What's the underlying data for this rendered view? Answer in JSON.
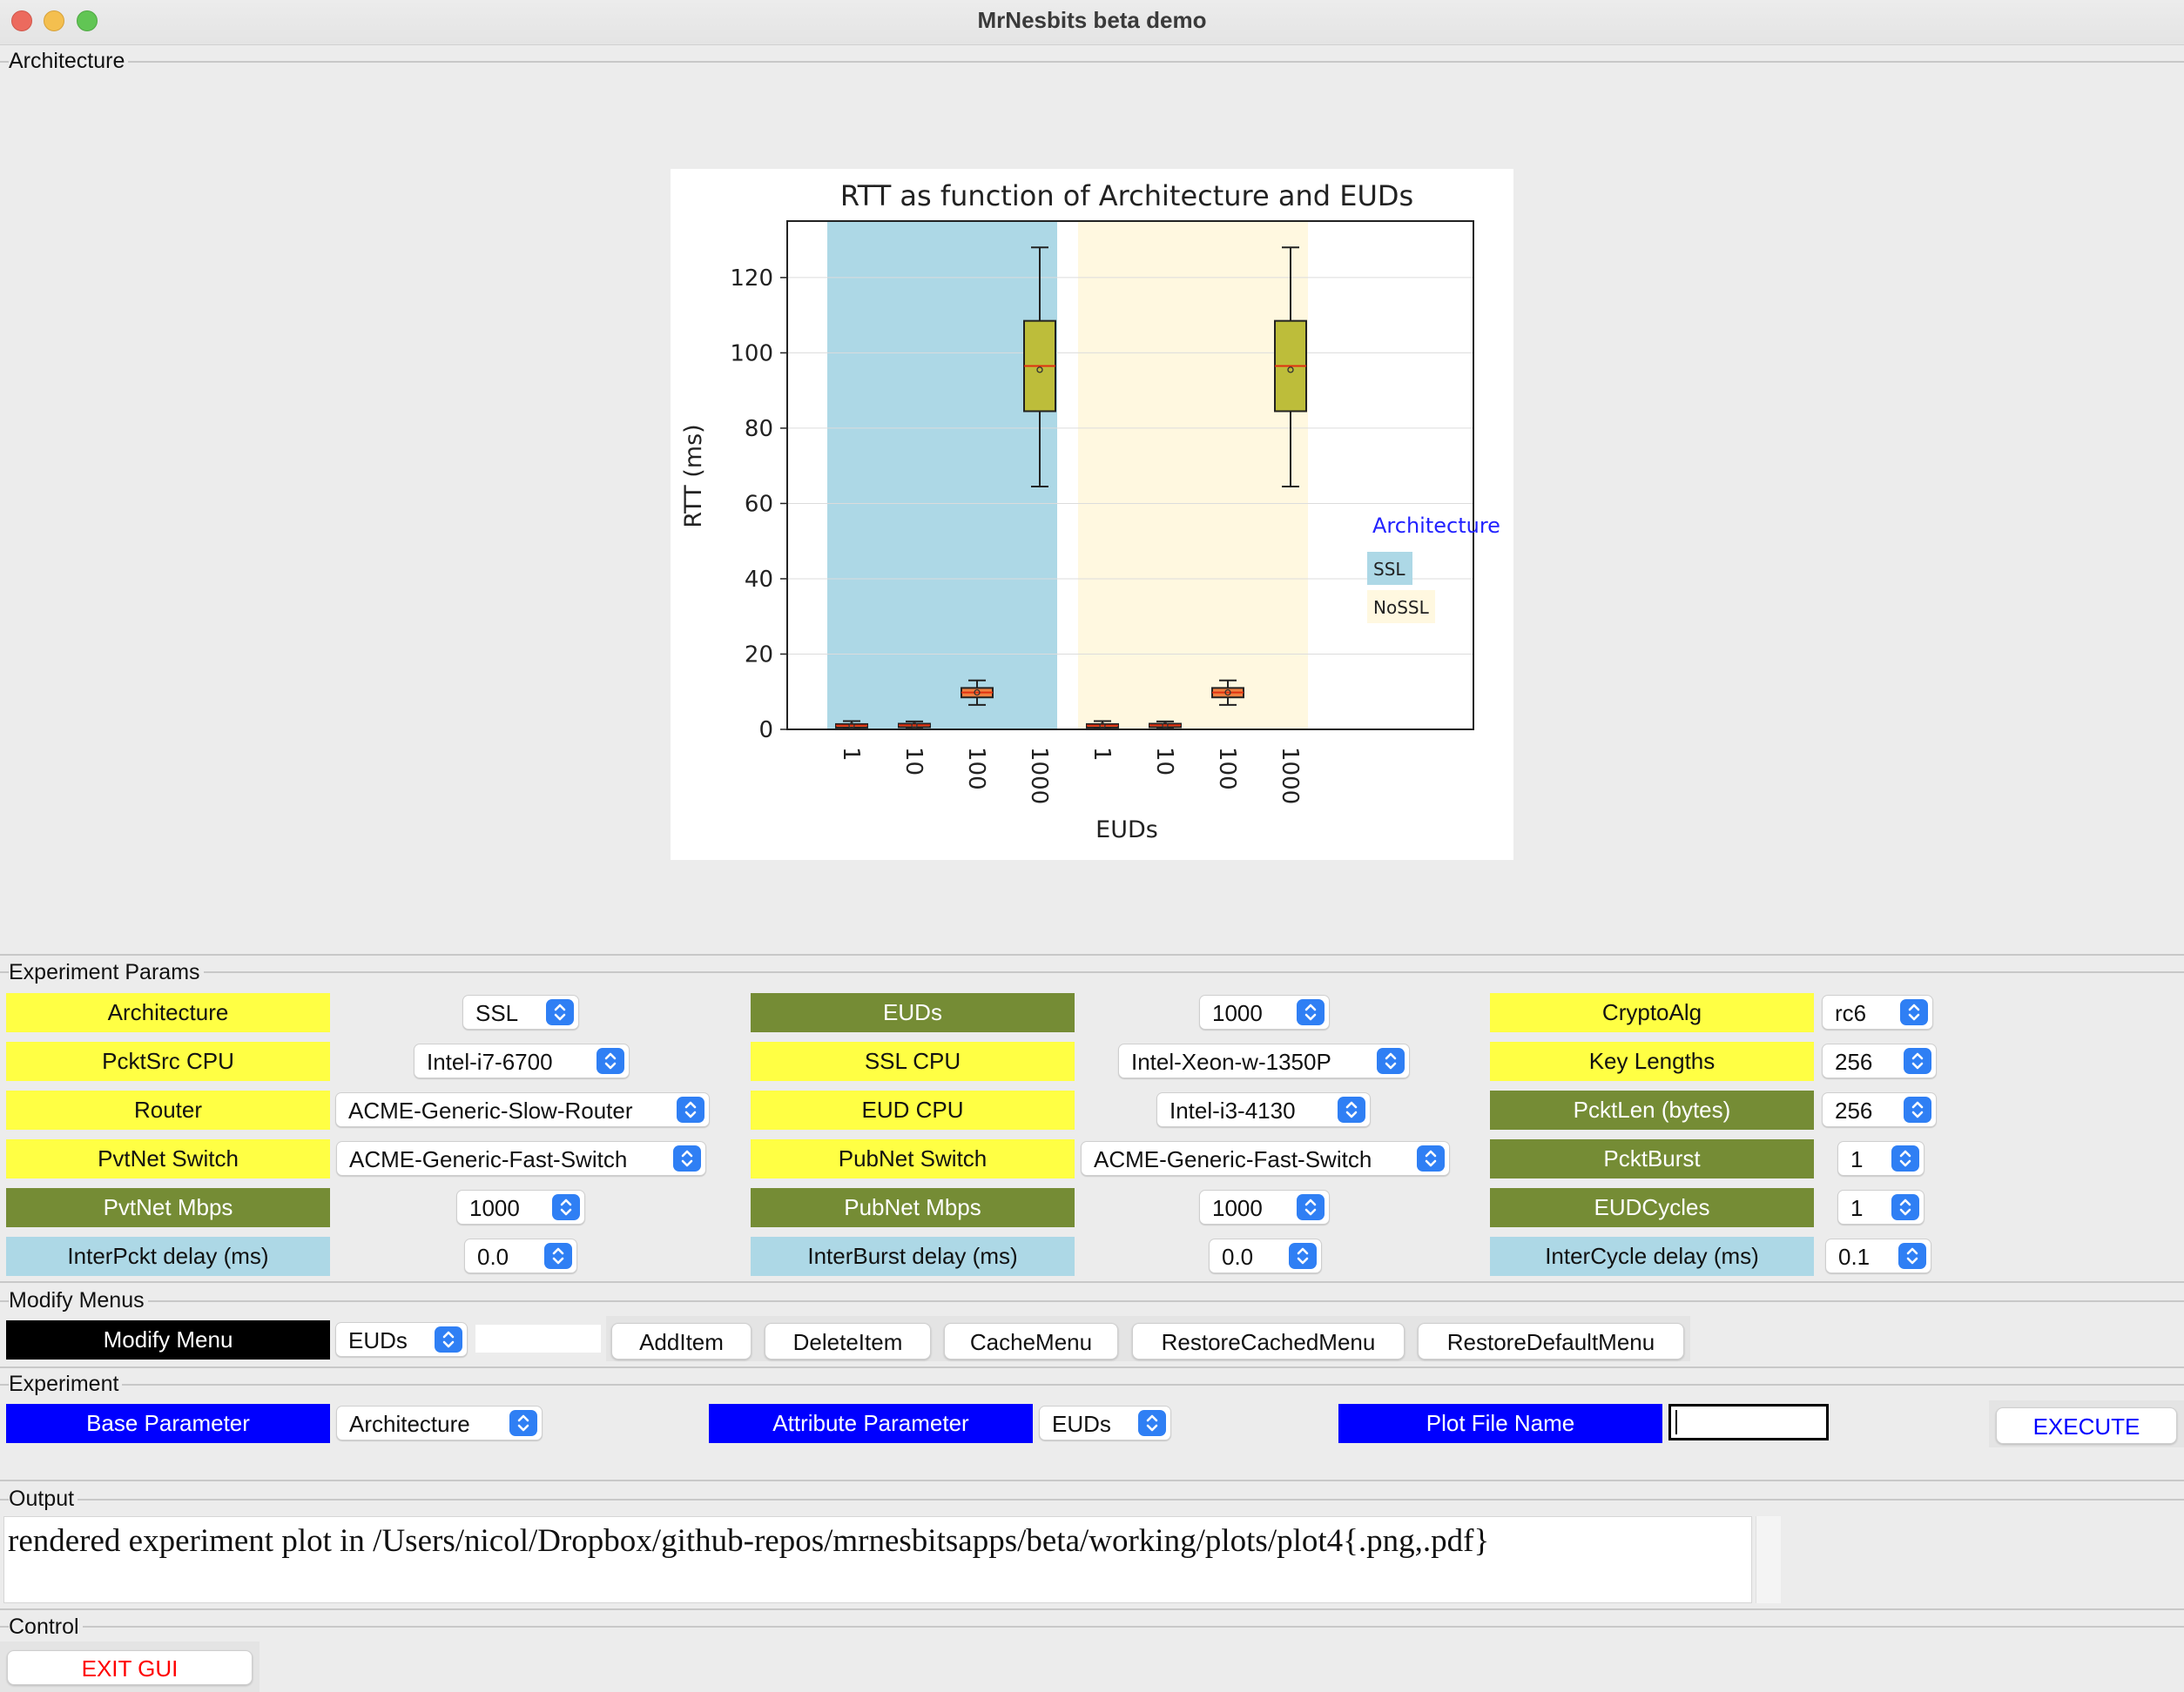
{
  "window": {
    "title": "MrNesbits beta demo"
  },
  "sections": {
    "architecture": "Architecture",
    "experiment_params": "Experiment Params",
    "modify_menus": "Modify Menus",
    "experiment": "Experiment",
    "output": "Output",
    "control": "Control"
  },
  "chart_data": {
    "type": "box",
    "title": "RTT as function of Architecture and EUDs",
    "xlabel": "EUDs",
    "ylabel": "RTT (ms)",
    "ylim": [
      0,
      135
    ],
    "yticks": [
      0,
      20,
      40,
      60,
      80,
      100,
      120
    ],
    "grid": true,
    "legend": {
      "title": "Architecture",
      "placement": "right",
      "entries": [
        "SSL",
        "NoSSL"
      ]
    },
    "groups": [
      {
        "name": "SSL",
        "color": "#add8e6",
        "categories": [
          "1",
          "10",
          "100",
          "1000"
        ],
        "boxes": [
          {
            "whislo": 0.2,
            "q1": 0.6,
            "med": 1.0,
            "q3": 1.4,
            "whishi": 2.2,
            "mean": 1.0
          },
          {
            "whislo": 0.3,
            "q1": 0.7,
            "med": 1.1,
            "q3": 1.5,
            "whishi": 2.1,
            "mean": 1.1
          },
          {
            "whislo": 6.5,
            "q1": 8.5,
            "med": 9.8,
            "q3": 11.0,
            "whishi": 13.0,
            "mean": 9.8
          },
          {
            "whislo": 64.5,
            "q1": 84.5,
            "med": 96.5,
            "q3": 108.5,
            "whishi": 128.0,
            "mean": 95.5
          }
        ]
      },
      {
        "name": "NoSSL",
        "color": "#fff8e0",
        "categories": [
          "1",
          "10",
          "100",
          "1000"
        ],
        "boxes": [
          {
            "whislo": 0.2,
            "q1": 0.6,
            "med": 1.0,
            "q3": 1.4,
            "whishi": 2.2,
            "mean": 1.0
          },
          {
            "whislo": 0.3,
            "q1": 0.7,
            "med": 1.1,
            "q3": 1.5,
            "whishi": 2.1,
            "mean": 1.1
          },
          {
            "whislo": 6.5,
            "q1": 8.5,
            "med": 9.8,
            "q3": 11.0,
            "whishi": 13.0,
            "mean": 9.8
          },
          {
            "whislo": 64.5,
            "q1": 84.5,
            "med": 96.5,
            "q3": 108.5,
            "whishi": 128.0,
            "mean": 95.5
          }
        ]
      }
    ],
    "box_colors": {
      "small": "#f08040",
      "large": "#bdbd3a",
      "median": "#e03010"
    }
  },
  "params": {
    "architecture": {
      "label": "Architecture",
      "value": "SSL"
    },
    "pcktsrc_cpu": {
      "label": "PcktSrc CPU",
      "value": "Intel-i7-6700"
    },
    "router": {
      "label": "Router",
      "value": "ACME-Generic-Slow-Router"
    },
    "pvtnet_switch": {
      "label": "PvtNet Switch",
      "value": "ACME-Generic-Fast-Switch"
    },
    "pvtnet_mbps": {
      "label": "PvtNet Mbps",
      "value": "1000"
    },
    "interpckt_delay": {
      "label": "InterPckt delay (ms)",
      "value": "0.0"
    },
    "euds": {
      "label": "EUDs",
      "value": "1000"
    },
    "ssl_cpu": {
      "label": "SSL CPU",
      "value": "Intel-Xeon-w-1350P"
    },
    "eud_cpu": {
      "label": "EUD CPU",
      "value": "Intel-i3-4130"
    },
    "pubnet_switch": {
      "label": "PubNet Switch",
      "value": "ACME-Generic-Fast-Switch"
    },
    "pubnet_mbps": {
      "label": "PubNet Mbps",
      "value": "1000"
    },
    "interburst_delay": {
      "label": "InterBurst delay (ms)",
      "value": "0.0"
    },
    "cryptoalg": {
      "label": "CryptoAlg",
      "value": "rc6"
    },
    "key_lengths": {
      "label": "Key Lengths",
      "value": "256"
    },
    "pcktlen": {
      "label": "PcktLen (bytes)",
      "value": "256"
    },
    "pcktburst": {
      "label": "PcktBurst",
      "value": "1"
    },
    "eudcycles": {
      "label": "EUDCycles",
      "value": "1"
    },
    "intercycle_delay": {
      "label": "InterCycle delay (ms)",
      "value": "0.1"
    }
  },
  "modify": {
    "label": "Modify Menu",
    "menu_value": "EUDs",
    "entry_value": "",
    "buttons": {
      "add": "AddItem",
      "delete": "DeleteItem",
      "cache": "CacheMenu",
      "restore_cached": "RestoreCachedMenu",
      "restore_default": "RestoreDefaultMenu"
    }
  },
  "experiment": {
    "base_label": "Base Parameter",
    "base_value": "Architecture",
    "attr_label": "Attribute Parameter",
    "attr_value": "EUDs",
    "plotfile_label": "Plot File Name",
    "plotfile_value": "",
    "execute": "EXECUTE",
    "execute_color": "#0000ff"
  },
  "output": {
    "text": "rendered experiment plot in /Users/nicol/Dropbox/github-repos/mrnesbitsapps/beta/working/plots/plot4{.png,.pdf}"
  },
  "control": {
    "exit": "EXIT GUI",
    "exit_color": "#ff0000"
  }
}
